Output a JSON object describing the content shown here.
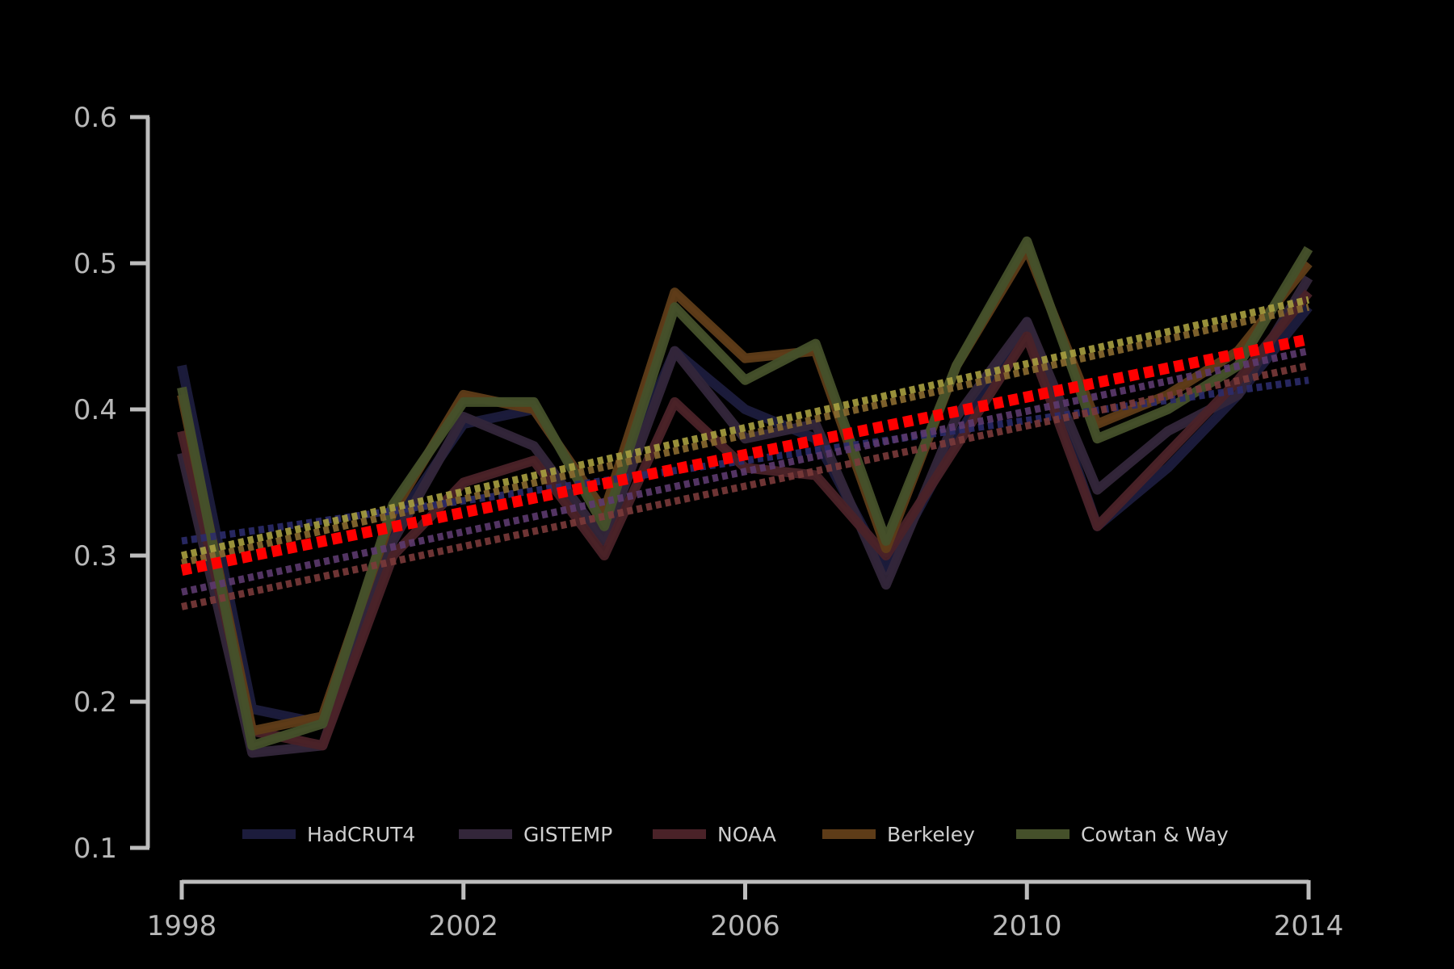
{
  "chart_data": {
    "type": "line",
    "title": "",
    "xlabel": "",
    "ylabel": "",
    "xlim": [
      1998,
      2014
    ],
    "ylim": [
      0.1,
      0.6
    ],
    "x_ticks": [
      "1998",
      "2002",
      "2006",
      "2010",
      "2014"
    ],
    "y_ticks": [
      "0.1",
      "0.2",
      "0.3",
      "0.4",
      "0.5",
      "0.6"
    ],
    "x": [
      1998,
      1999,
      2000,
      2001,
      2002,
      2003,
      2004,
      2005,
      2006,
      2007,
      2008,
      2009,
      2010,
      2011,
      2012,
      2013,
      2014
    ],
    "grid": false,
    "legend_position": "bottom",
    "series": [
      {
        "name": "HadCRUT4",
        "color": "#1c1c3c",
        "values": [
          0.43,
          0.195,
          0.185,
          0.32,
          0.39,
          0.4,
          0.33,
          0.44,
          0.4,
          0.38,
          0.29,
          0.38,
          0.46,
          0.32,
          0.36,
          0.41,
          0.47
        ],
        "trend": [
          0.31,
          0.42
        ]
      },
      {
        "name": "GISTEMP",
        "color": "#33263a",
        "values": [
          0.37,
          0.165,
          0.17,
          0.31,
          0.395,
          0.375,
          0.31,
          0.44,
          0.38,
          0.39,
          0.28,
          0.395,
          0.46,
          0.345,
          0.385,
          0.41,
          0.49
        ],
        "trend": [
          0.275,
          0.44
        ]
      },
      {
        "name": "NOAA",
        "color": "#4a2228",
        "values": [
          0.385,
          0.18,
          0.17,
          0.3,
          0.35,
          0.365,
          0.3,
          0.405,
          0.36,
          0.355,
          0.3,
          0.375,
          0.45,
          0.32,
          0.37,
          0.42,
          0.48
        ],
        "trend": [
          0.265,
          0.43
        ]
      },
      {
        "name": "Berkeley",
        "color": "#5e3c18",
        "values": [
          0.41,
          0.18,
          0.19,
          0.33,
          0.41,
          0.4,
          0.33,
          0.48,
          0.435,
          0.44,
          0.305,
          0.43,
          0.51,
          0.39,
          0.41,
          0.44,
          0.5
        ],
        "trend": [
          0.295,
          0.47
        ]
      },
      {
        "name": "Cowtan & Way",
        "color": "#45502a",
        "values": [
          0.415,
          0.17,
          0.185,
          0.335,
          0.405,
          0.405,
          0.32,
          0.47,
          0.42,
          0.445,
          0.31,
          0.43,
          0.515,
          0.38,
          0.4,
          0.43,
          0.51
        ],
        "trend": [
          0.3,
          0.475
        ]
      }
    ],
    "mean_trend": {
      "color": "#ff0000",
      "values": [
        0.29,
        0.448
      ]
    }
  }
}
